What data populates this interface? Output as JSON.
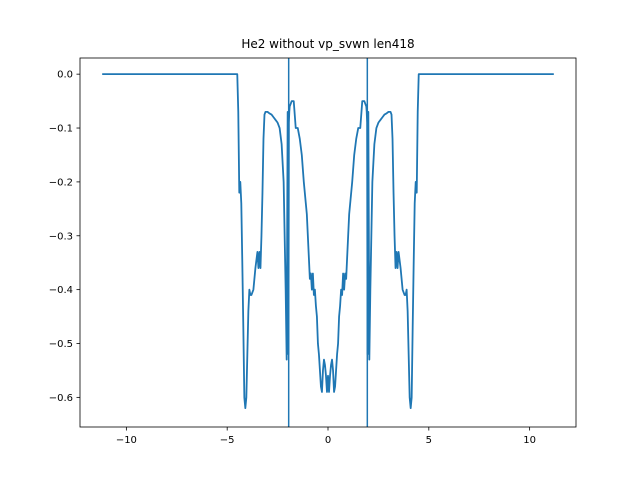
{
  "chart_data": {
    "type": "line",
    "title": "He2 without vp_svwn len418",
    "xlabel": "",
    "ylabel": "",
    "xlim": [
      -12.3,
      12.3
    ],
    "ylim": [
      -0.655,
      0.03
    ],
    "xticks": [
      -10,
      -5,
      0,
      5,
      10
    ],
    "xtick_labels": [
      "−10",
      "−5",
      "0",
      "5",
      "10"
    ],
    "yticks": [
      0.0,
      -0.1,
      -0.2,
      -0.3,
      -0.4,
      -0.5,
      -0.6
    ],
    "ytick_labels": [
      "0.0",
      "−0.1",
      "−0.2",
      "−0.3",
      "−0.4",
      "−0.5",
      "−0.6"
    ],
    "grid": false,
    "legend": "none",
    "vlines": [
      -1.95,
      1.95
    ],
    "colors": {
      "line": "#1f77b4",
      "vline": "#1f77b4",
      "axes": "#000000"
    },
    "series": [
      {
        "x": [
          -11.2,
          -4.5,
          -4.45,
          -4.4,
          -4.35,
          -4.3,
          -4.25,
          -4.2,
          -4.15,
          -4.1,
          -4.05,
          -4.0,
          -3.95,
          -3.9,
          -3.85,
          -3.8,
          -3.7,
          -3.6,
          -3.5,
          -3.45,
          -3.4,
          -3.35,
          -3.3,
          -3.25,
          -3.2,
          -3.15,
          -3.1,
          -3.0,
          -2.9,
          -2.8,
          -2.7,
          -2.6,
          -2.5,
          -2.4,
          -2.3,
          -2.2,
          -2.1,
          -2.05,
          -2.0,
          -1.98,
          -1.96,
          -1.94,
          -1.92,
          -1.9,
          -1.85,
          -1.8,
          -1.7,
          -1.6,
          -1.5,
          -1.4,
          -1.3,
          -1.2,
          -1.1,
          -1.05,
          -1.0,
          -0.95,
          -0.9,
          -0.85,
          -0.8,
          -0.75,
          -0.7,
          -0.65,
          -0.6,
          -0.55,
          -0.5,
          -0.45,
          -0.4,
          -0.35,
          -0.3,
          -0.25,
          -0.2,
          -0.15,
          -0.1,
          -0.05,
          0.0,
          0.05,
          0.1,
          0.15,
          0.2,
          0.25,
          0.3,
          0.35,
          0.4,
          0.45,
          0.5,
          0.55,
          0.6,
          0.65,
          0.7,
          0.75,
          0.8,
          0.85,
          0.9,
          0.95,
          1.0,
          1.05,
          1.1,
          1.2,
          1.3,
          1.4,
          1.5,
          1.6,
          1.7,
          1.8,
          1.85,
          1.9,
          1.92,
          1.94,
          1.96,
          1.98,
          2.0,
          2.05,
          2.1,
          2.2,
          2.3,
          2.4,
          2.5,
          2.6,
          2.7,
          2.8,
          2.9,
          3.0,
          3.1,
          3.15,
          3.2,
          3.25,
          3.3,
          3.35,
          3.4,
          3.45,
          3.5,
          3.6,
          3.7,
          3.8,
          3.85,
          3.9,
          3.95,
          4.0,
          4.05,
          4.1,
          4.15,
          4.2,
          4.25,
          4.3,
          4.35,
          4.4,
          4.45,
          4.5,
          11.2
        ],
        "y": [
          0.0,
          0.0,
          -0.07,
          -0.22,
          -0.2,
          -0.24,
          -0.35,
          -0.47,
          -0.6,
          -0.62,
          -0.6,
          -0.52,
          -0.44,
          -0.4,
          -0.41,
          -0.41,
          -0.4,
          -0.36,
          -0.33,
          -0.36,
          -0.33,
          -0.36,
          -0.3,
          -0.22,
          -0.12,
          -0.075,
          -0.07,
          -0.07,
          -0.073,
          -0.075,
          -0.08,
          -0.085,
          -0.09,
          -0.1,
          -0.13,
          -0.2,
          -0.4,
          -0.53,
          -0.07,
          -0.08,
          -0.52,
          -0.09,
          -0.07,
          -0.06,
          -0.055,
          -0.05,
          -0.05,
          -0.1,
          -0.1,
          -0.12,
          -0.15,
          -0.2,
          -0.24,
          -0.26,
          -0.3,
          -0.34,
          -0.38,
          -0.37,
          -0.4,
          -0.37,
          -0.41,
          -0.4,
          -0.43,
          -0.45,
          -0.5,
          -0.52,
          -0.55,
          -0.58,
          -0.59,
          -0.55,
          -0.53,
          -0.54,
          -0.56,
          -0.59,
          -0.56,
          -0.59,
          -0.56,
          -0.54,
          -0.53,
          -0.55,
          -0.59,
          -0.58,
          -0.55,
          -0.52,
          -0.5,
          -0.45,
          -0.43,
          -0.4,
          -0.41,
          -0.37,
          -0.4,
          -0.37,
          -0.38,
          -0.34,
          -0.3,
          -0.26,
          -0.24,
          -0.2,
          -0.15,
          -0.12,
          -0.1,
          -0.1,
          -0.05,
          -0.05,
          -0.055,
          -0.06,
          -0.07,
          -0.09,
          -0.52,
          -0.08,
          -0.07,
          -0.53,
          -0.4,
          -0.2,
          -0.13,
          -0.1,
          -0.09,
          -0.085,
          -0.08,
          -0.075,
          -0.073,
          -0.07,
          -0.07,
          -0.075,
          -0.12,
          -0.22,
          -0.3,
          -0.36,
          -0.33,
          -0.36,
          -0.33,
          -0.36,
          -0.4,
          -0.41,
          -0.41,
          -0.4,
          -0.44,
          -0.52,
          -0.6,
          -0.62,
          -0.6,
          -0.47,
          -0.35,
          -0.24,
          -0.2,
          -0.22,
          -0.07,
          0.0,
          0.0
        ]
      }
    ]
  }
}
